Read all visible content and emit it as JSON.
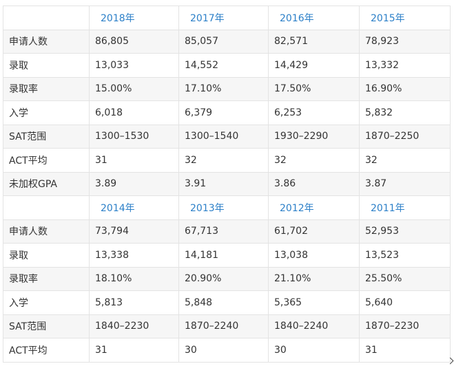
{
  "tables": [
    {
      "years": [
        "2018年",
        "2017年",
        "2016年",
        "2015年"
      ],
      "rows": [
        {
          "label": "申请人数",
          "values": [
            "86,805",
            "85,057",
            "82,571",
            "78,923"
          ]
        },
        {
          "label": "录取",
          "values": [
            "13,033",
            "14,552",
            "14,429",
            "13,332"
          ]
        },
        {
          "label": "录取率",
          "values": [
            "15.00%",
            "17.10%",
            "17.50%",
            "16.90%"
          ]
        },
        {
          "label": "入学",
          "values": [
            "6,018",
            "6,379",
            "6,253",
            "5,832"
          ]
        },
        {
          "label": "SAT范围",
          "values": [
            "1300–1530",
            "1300–1540",
            "1930–2290",
            "1870–2250"
          ]
        },
        {
          "label": "ACT平均",
          "values": [
            "31",
            "32",
            "32",
            "32"
          ]
        },
        {
          "label": "未加权GPA",
          "values": [
            "3.89",
            "3.91",
            "3.86",
            "3.87"
          ]
        }
      ]
    },
    {
      "years": [
        "2014年",
        "2013年",
        "2012年",
        "2011年"
      ],
      "rows": [
        {
          "label": "申请人数",
          "values": [
            "73,794",
            "67,713",
            "61,702",
            "52,953"
          ]
        },
        {
          "label": "录取",
          "values": [
            "13,338",
            "14,181",
            "13,038",
            "13,523"
          ]
        },
        {
          "label": "录取率",
          "values": [
            "18.10%",
            "20.90%",
            "21.10%",
            "25.50%"
          ]
        },
        {
          "label": "入学",
          "values": [
            "5,813",
            "5,848",
            "5,365",
            "5,640"
          ]
        },
        {
          "label": "SAT范围",
          "values": [
            "1840–2230",
            "1870–2240",
            "1840–2240",
            "1870–2230"
          ]
        },
        {
          "label": "ACT平均",
          "values": [
            "31",
            "30",
            "30",
            "31"
          ]
        }
      ]
    }
  ]
}
